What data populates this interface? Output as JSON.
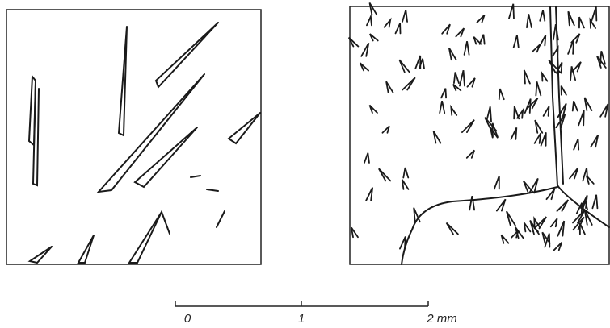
{
  "scale_bar": {
    "labels": [
      "0",
      "1",
      "2 mm"
    ]
  }
}
